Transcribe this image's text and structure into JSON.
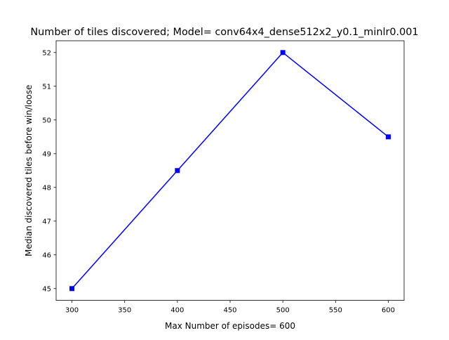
{
  "chart_data": {
    "type": "line",
    "title": "Number of tiles discovered; Model= conv64x4_dense512x2_y0.1_minlr0.001",
    "xlabel": "Max Number of episodes= 600",
    "ylabel": "Median discovered tiles before win/loose",
    "x": [
      300,
      400,
      500,
      600
    ],
    "series": [
      {
        "values": [
          45,
          48.5,
          52,
          49.5
        ],
        "color": "#0000ff",
        "marker": "square"
      }
    ],
    "xlim": [
      285,
      615
    ],
    "ylim": [
      44.65,
      52.35
    ],
    "xticks": [
      300,
      350,
      400,
      450,
      500,
      550,
      600
    ],
    "yticks": [
      45,
      46,
      47,
      48,
      49,
      50,
      51,
      52
    ],
    "grid": false,
    "legend": "none"
  }
}
